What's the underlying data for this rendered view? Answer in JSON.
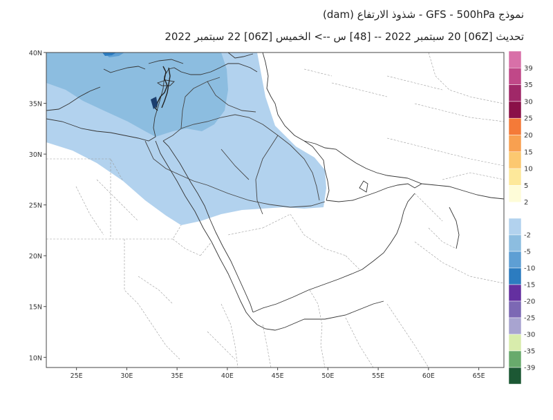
{
  "header": {
    "title_line1": "نموذج GFS  - 500hPa - شذوذ الارتفاع (dam)",
    "title_line2": "تحديث [06Z] 20 سبتمبر 2022 -- [48] س --> الخميس [06Z] 22 سبتمبر 2022"
  },
  "map": {
    "lon_ticks": [
      "25E",
      "30E",
      "35E",
      "40E",
      "45E",
      "50E",
      "55E",
      "60E",
      "65E"
    ],
    "lon_values": [
      25,
      30,
      35,
      40,
      45,
      50,
      55,
      60,
      65
    ],
    "lat_ticks": [
      "40N",
      "35N",
      "30N",
      "25N",
      "20N",
      "15N",
      "10N"
    ],
    "lat_values": [
      40,
      35,
      30,
      25,
      20,
      15,
      10
    ],
    "lon_range": [
      22,
      67.5
    ],
    "lat_range": [
      9,
      40
    ]
  },
  "colorbar": {
    "positive": [
      {
        "label": "39",
        "color": "#d870a8"
      },
      {
        "label": "35",
        "color": "#c04888"
      },
      {
        "label": "30",
        "color": "#a02868"
      },
      {
        "label": "25",
        "color": "#8a1048"
      },
      {
        "label": "20",
        "color": "#f47a38"
      },
      {
        "label": "15",
        "color": "#f8a050"
      },
      {
        "label": "10",
        "color": "#fcc870"
      },
      {
        "label": "5",
        "color": "#fde89a"
      },
      {
        "label": "2",
        "color": "#fefcd8"
      }
    ],
    "negative": [
      {
        "label": "-2",
        "color": "#b2d2ee"
      },
      {
        "label": "-5",
        "color": "#8cbde0"
      },
      {
        "label": "-10",
        "color": "#5e9fd4"
      },
      {
        "label": "-15",
        "color": "#2c7cc0"
      },
      {
        "label": "-20",
        "color": "#6430a0"
      },
      {
        "label": "-25",
        "color": "#7c68b4"
      },
      {
        "label": "-30",
        "color": "#a8a4d0"
      },
      {
        "label": "-35",
        "color": "#d8ecac"
      },
      {
        "label": "-39",
        "color": "#68aa6c"
      },
      {
        "label": "",
        "color": "#1c5834"
      }
    ]
  }
}
